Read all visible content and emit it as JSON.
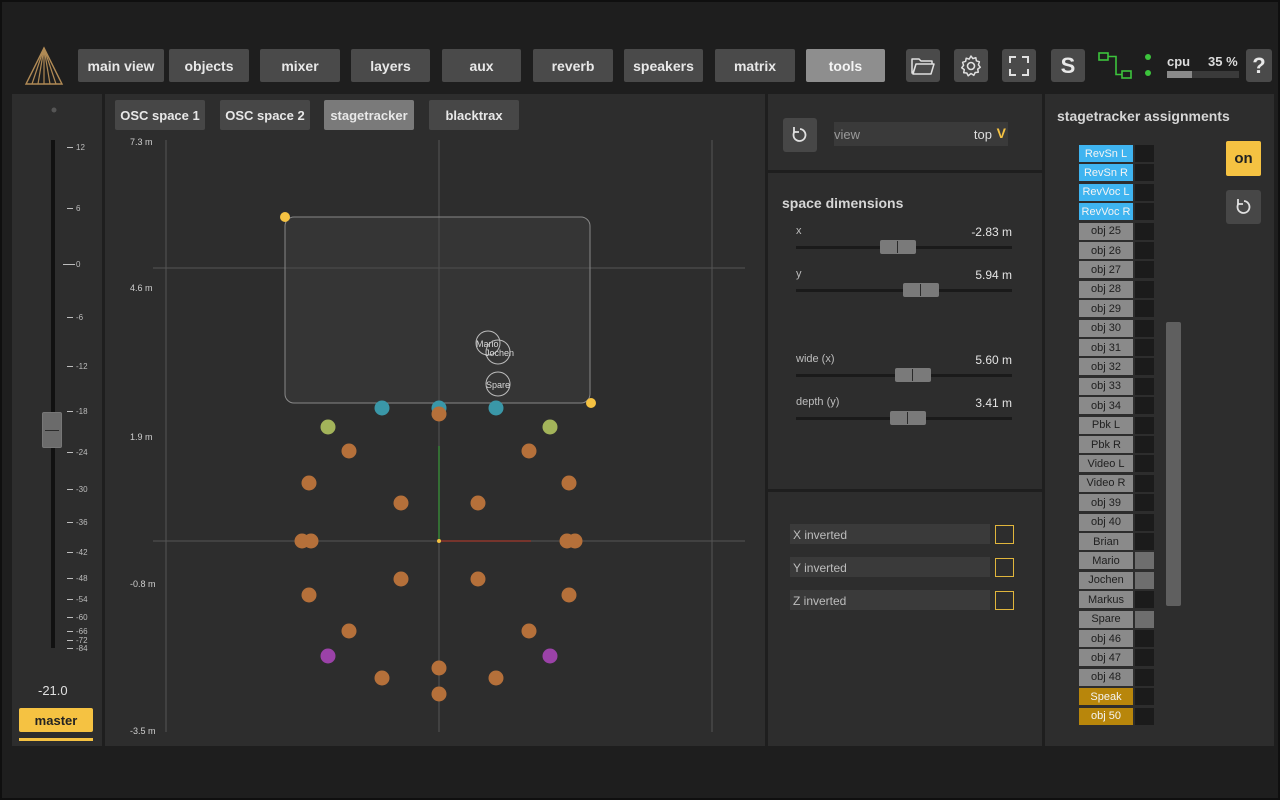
{
  "nav": {
    "tabs": [
      "main view",
      "objects",
      "mixer",
      "layers",
      "aux",
      "reverb",
      "speakers",
      "matrix",
      "tools"
    ],
    "active": "tools",
    "s_label": "S",
    "help_label": "?",
    "cpu_label": "cpu",
    "cpu_value": "35 %",
    "cpu_fraction": 0.35
  },
  "fader": {
    "scale": [
      "12",
      "6",
      "0",
      "-6",
      "-12",
      "-18",
      "-24",
      "-30",
      "-36",
      "-42",
      "-48",
      "-54",
      "-60",
      "-66",
      "-72",
      "-84"
    ],
    "value": "-21.0",
    "master_label": "master"
  },
  "canvas": {
    "subtabs": [
      "OSC space 1",
      "OSC space 2",
      "stagetracker",
      "blacktrax"
    ],
    "active_subtab": "stagetracker",
    "y_labels": [
      "7.3 m",
      "4.6 m",
      "1.9 m",
      "-0.8 m",
      "-3.5 m"
    ],
    "objects": [
      "Mario",
      "Jochen",
      "Spare"
    ]
  },
  "view": {
    "label": "view",
    "value": "top",
    "chevron": "V"
  },
  "space_dimensions": {
    "title": "space dimensions",
    "params": [
      {
        "label": "x",
        "value": "-2.83 m",
        "fraction": 0.47
      },
      {
        "label": "y",
        "value": "5.94 m",
        "fraction": 0.58
      },
      {
        "label": "wide (x)",
        "value": "5.60 m",
        "fraction": 0.54
      },
      {
        "label": "depth (y)",
        "value": "3.41 m",
        "fraction": 0.52
      }
    ]
  },
  "inversion": {
    "items": [
      "X inverted",
      "Y inverted",
      "Z inverted"
    ]
  },
  "assignments": {
    "title": "stagetracker assignments",
    "on_label": "on",
    "items": [
      {
        "label": "RevSn L",
        "style": "blue",
        "slot": false
      },
      {
        "label": "RevSn R",
        "style": "blue",
        "slot": false
      },
      {
        "label": "RevVoc L",
        "style": "blue",
        "slot": false
      },
      {
        "label": "RevVoc R",
        "style": "blue",
        "slot": false
      },
      {
        "label": "obj 25",
        "style": "gray",
        "slot": false
      },
      {
        "label": "obj 26",
        "style": "gray",
        "slot": false
      },
      {
        "label": "obj 27",
        "style": "gray",
        "slot": false
      },
      {
        "label": "obj 28",
        "style": "gray",
        "slot": false
      },
      {
        "label": "obj 29",
        "style": "gray",
        "slot": false
      },
      {
        "label": "obj 30",
        "style": "gray",
        "slot": false
      },
      {
        "label": "obj 31",
        "style": "gray",
        "slot": false
      },
      {
        "label": "obj 32",
        "style": "gray",
        "slot": false
      },
      {
        "label": "obj 33",
        "style": "gray",
        "slot": false
      },
      {
        "label": "obj 34",
        "style": "gray",
        "slot": false
      },
      {
        "label": "Pbk L",
        "style": "gray",
        "slot": false
      },
      {
        "label": "Pbk R",
        "style": "gray",
        "slot": false
      },
      {
        "label": "Video L",
        "style": "gray",
        "slot": false
      },
      {
        "label": "Video R",
        "style": "gray",
        "slot": false
      },
      {
        "label": "obj 39",
        "style": "gray",
        "slot": false
      },
      {
        "label": "obj 40",
        "style": "gray",
        "slot": false
      },
      {
        "label": "Brian",
        "style": "gray",
        "slot": false
      },
      {
        "label": "Mario",
        "style": "gray",
        "slot": true
      },
      {
        "label": "Jochen",
        "style": "gray",
        "slot": true
      },
      {
        "label": "Markus",
        "style": "gray",
        "slot": false
      },
      {
        "label": "Spare",
        "style": "gray",
        "slot": true
      },
      {
        "label": "obj 46",
        "style": "gray",
        "slot": false
      },
      {
        "label": "obj 47",
        "style": "gray",
        "slot": false
      },
      {
        "label": "obj 48",
        "style": "gray",
        "slot": false
      },
      {
        "label": "Speak",
        "style": "gold",
        "slot": false
      },
      {
        "label": "obj 50",
        "style": "gold",
        "slot": false
      }
    ]
  },
  "colors": {
    "accent": "#f5c242",
    "blue": "#3fb4f0",
    "orange": "#b5703a",
    "teal": "#3a97a8",
    "green": "#a3b45a",
    "purple": "#9b42a8"
  }
}
